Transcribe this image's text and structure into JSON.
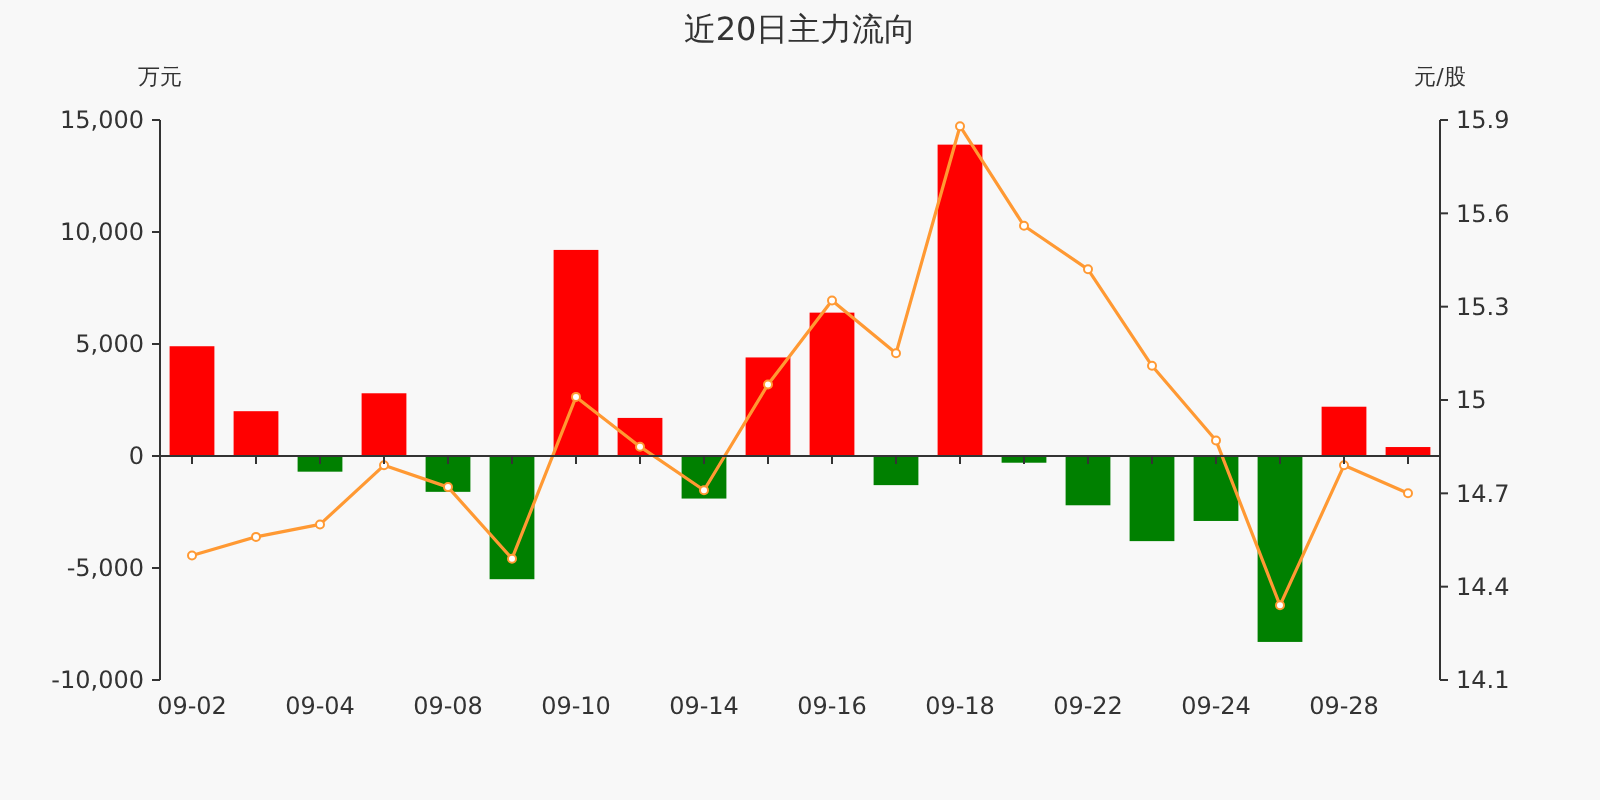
{
  "chart_data": {
    "type": "bar",
    "title": "近20日主力流向",
    "ylabel": "万元",
    "y2label": "元/股",
    "categories": [
      "09-02",
      null,
      "09-04",
      null,
      "09-08",
      null,
      "09-10",
      null,
      "09-14",
      null,
      "09-16",
      null,
      "09-18",
      null,
      "09-22",
      null,
      "09-24",
      null,
      "09-28",
      null
    ],
    "series": [
      {
        "colors": [
          "#ff0000",
          "#ff0000",
          "#008000",
          "#ff0000",
          "#008000",
          "#008000",
          "#ff0000",
          "#ff0000",
          "#008000",
          "#ff0000",
          "#ff0000",
          "#008000",
          "#ff0000",
          "#008000",
          "#008000",
          "#008000",
          "#008000",
          "#008000",
          "#ff0000",
          "#ff0000"
        ],
        "values": [
          4900,
          2000,
          -700,
          2800,
          -1600,
          -5500,
          9200,
          1700,
          -1900,
          4400,
          6400,
          -1300,
          13900,
          -300,
          -2200,
          -3800,
          -2900,
          -8300,
          2200,
          400
        ]
      },
      {
        "type": "line",
        "axis": "y2",
        "color": "#ff9933",
        "marker": "circle",
        "values": [
          14.5,
          14.56,
          14.6,
          14.79,
          14.72,
          14.49,
          15.01,
          14.85,
          14.71,
          15.05,
          15.32,
          15.15,
          15.88,
          15.56,
          15.42,
          15.11,
          14.87,
          14.34,
          14.79,
          14.7
        ]
      }
    ],
    "ylim": [
      -10000,
      15000
    ],
    "yticks": [
      {
        "value": -10000,
        "label": "-10,000"
      },
      {
        "value": -5000,
        "label": "-5,000"
      },
      0,
      {
        "value": 5000,
        "label": "5,000"
      },
      {
        "value": 10000,
        "label": "10,000"
      },
      {
        "value": 15000,
        "label": "15,000"
      }
    ],
    "y2lim": [
      14.1,
      15.9
    ],
    "y2ticks": [
      14.1,
      14.4,
      14.7,
      15,
      15.3,
      15.6,
      15.9
    ]
  }
}
